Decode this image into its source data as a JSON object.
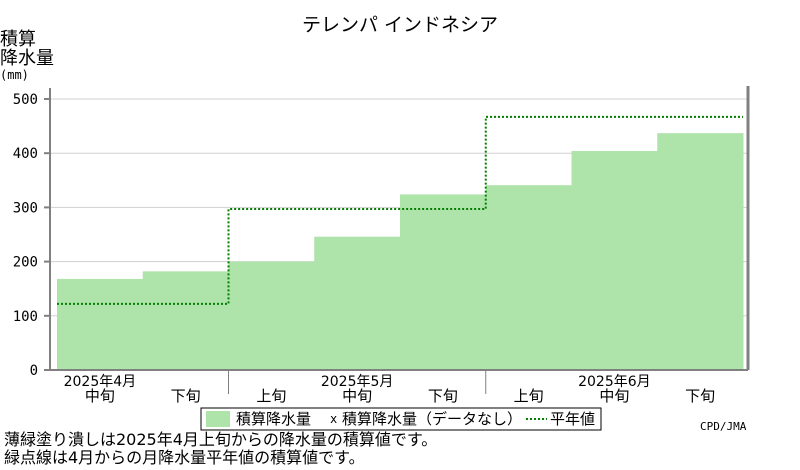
{
  "title": "テレンパ インドネシア",
  "ylabel": {
    "line1": "積算",
    "line2": "降水量",
    "unit": "(mm)"
  },
  "credit": "CPD/JMA",
  "notes": [
    "薄緑塗り潰しは2025年4月上旬からの降水量の積算値です。",
    "緑点線は4月からの月降水量平年値の積算値です。"
  ],
  "legend": {
    "fill_label": "積算降水量",
    "nodata_label": "積算降水量（データなし）",
    "normal_label": "平年値"
  },
  "colors": {
    "fill": "#aee3aa",
    "normal_line": "#008000",
    "axis": "#808080",
    "grid": "#d0d0d0"
  },
  "chart_data": {
    "type": "area",
    "x_labels": [
      "中旬",
      "下旬",
      "上旬",
      "中旬",
      "下旬",
      "上旬",
      "中旬",
      "下旬"
    ],
    "month_labels": [
      {
        "label": "2025年4月",
        "center_index": 0
      },
      {
        "label": "2025年5月",
        "center_index": 3
      },
      {
        "label": "2025年6月",
        "center_index": 6
      }
    ],
    "series": [
      {
        "name": "積算降水量",
        "style": "filled-step",
        "values": [
          168,
          182,
          200,
          246,
          324,
          341,
          404,
          437
        ]
      },
      {
        "name": "平年値",
        "style": "dotted-step",
        "values": [
          122,
          122,
          297,
          297,
          297,
          467,
          467,
          467
        ]
      }
    ],
    "y_ticks": [
      0,
      100,
      200,
      300,
      400,
      500
    ],
    "ylim": [
      0,
      500
    ],
    "grid": true,
    "legend_position": "bottom"
  }
}
